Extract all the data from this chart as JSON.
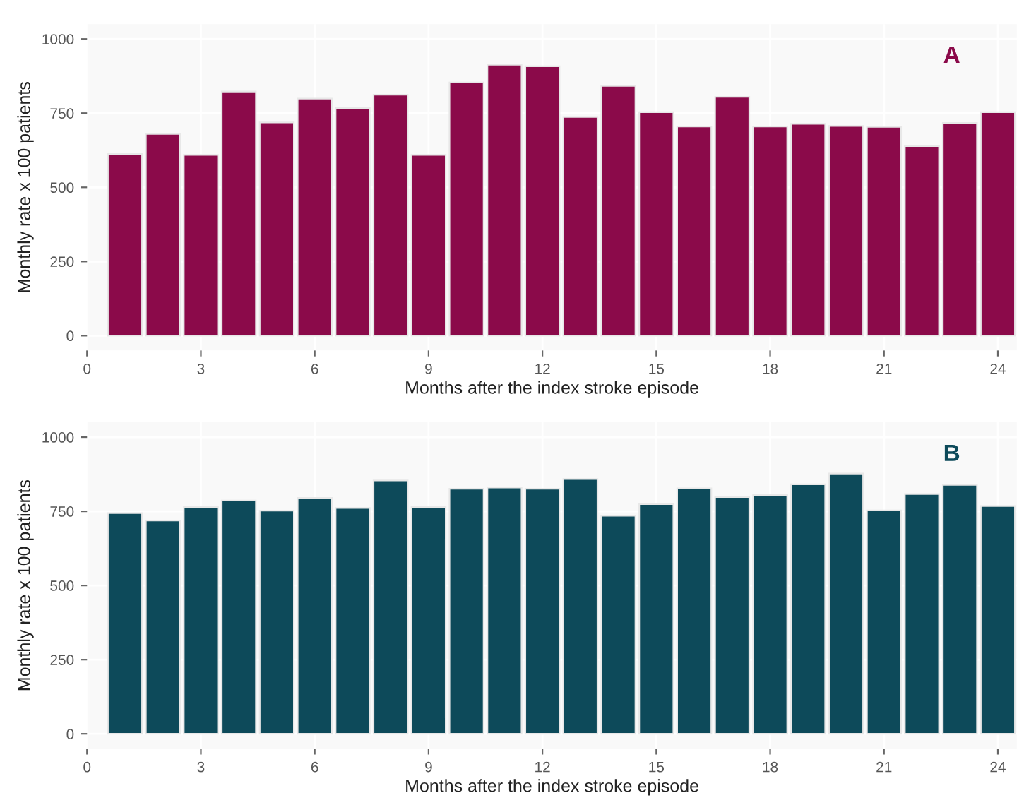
{
  "chart_data": [
    {
      "type": "bar",
      "x": [
        1,
        2,
        3,
        4,
        5,
        6,
        7,
        8,
        9,
        10,
        11,
        12,
        13,
        14,
        15,
        16,
        17,
        18,
        19,
        20,
        21,
        22,
        23,
        24
      ],
      "values": [
        613,
        680,
        609,
        823,
        719,
        799,
        767,
        812,
        609,
        853,
        913,
        908,
        737,
        842,
        753,
        705,
        805,
        705,
        714,
        707,
        704,
        639,
        717,
        753
      ],
      "color": "#8b0a4a",
      "xlabel": "Months after the index stroke episode",
      "ylabel": "Monthly rate x 100 patients",
      "xlim": [
        0,
        24.5
      ],
      "xticks": [
        0,
        3,
        6,
        9,
        12,
        15,
        18,
        21,
        24
      ],
      "ylim": [
        -50,
        1050
      ],
      "yticks": [
        0,
        250,
        500,
        750,
        1000
      ],
      "grid": true,
      "annotations": [
        "A"
      ]
    },
    {
      "type": "bar",
      "x": [
        1,
        2,
        3,
        4,
        5,
        6,
        7,
        8,
        9,
        10,
        11,
        12,
        13,
        14,
        15,
        16,
        17,
        18,
        19,
        20,
        21,
        22,
        23,
        24
      ],
      "values": [
        744,
        719,
        764,
        786,
        752,
        795,
        761,
        854,
        764,
        826,
        830,
        826,
        859,
        735,
        774,
        827,
        798,
        805,
        841,
        877,
        753,
        808,
        839,
        768
      ],
      "color": "#0d4a5a",
      "xlabel": "Months after the index stroke episode",
      "ylabel": "Monthly rate x 100 patients",
      "xlim": [
        0,
        24.5
      ],
      "xticks": [
        0,
        3,
        6,
        9,
        12,
        15,
        18,
        21,
        24
      ],
      "ylim": [
        -50,
        1050
      ],
      "yticks": [
        0,
        250,
        500,
        750,
        1000
      ],
      "grid": true,
      "annotations": [
        "B"
      ]
    }
  ]
}
